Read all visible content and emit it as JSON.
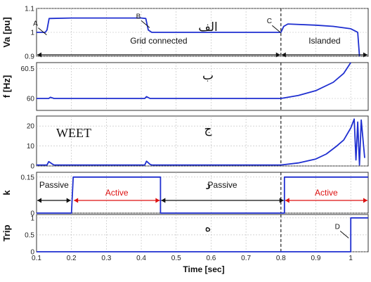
{
  "chart_data": {
    "type": "line",
    "xlabel": "Time [sec]",
    "xlim": [
      0.1,
      1.05
    ],
    "x_ticks": [
      "0.1",
      "0.2",
      "0.3",
      "0.4",
      "0.5",
      "0.6",
      "0.7",
      "0.8",
      "0.9",
      "1"
    ],
    "event_marker_x": 0.8,
    "line_color": "#1f2fd0",
    "panels": [
      {
        "id": "va",
        "ylabel": "Va [pu]",
        "ylim": [
          0.9,
          1.1
        ],
        "y_ticks": [
          "0.9",
          "1",
          "1.1"
        ],
        "panel_label": "الف",
        "points": [
          [
            0.1,
            1.0
          ],
          [
            0.125,
            1.0
          ],
          [
            0.13,
            1.01
          ],
          [
            0.136,
            1.058
          ],
          [
            0.2,
            1.06
          ],
          [
            0.3,
            1.06
          ],
          [
            0.4,
            1.06
          ],
          [
            0.413,
            1.058
          ],
          [
            0.42,
            1.01
          ],
          [
            0.43,
            1.0
          ],
          [
            0.8,
            1.0
          ],
          [
            0.808,
            1.025
          ],
          [
            0.82,
            1.035
          ],
          [
            0.9,
            1.03
          ],
          [
            0.95,
            1.025
          ],
          [
            1.0,
            1.015
          ],
          [
            1.02,
            1.0
          ],
          [
            1.025,
            0.9
          ]
        ],
        "labels": [
          {
            "id": "a",
            "text": "A",
            "x": 0.125,
            "y": 1.01
          },
          {
            "id": "b",
            "text": "B",
            "x": 0.42,
            "y": 1.04
          },
          {
            "id": "c",
            "text": "C",
            "x": 0.795,
            "y": 1.02
          }
        ],
        "spans": [
          {
            "id": "grid",
            "text": "Grid connected",
            "x0": 0.1,
            "x1": 0.8,
            "color": "#111"
          },
          {
            "id": "islanded",
            "text": "Islanded",
            "x0": 0.8,
            "x1": 1.05,
            "color": "#111"
          }
        ]
      },
      {
        "id": "freq",
        "ylabel": "f [Hz]",
        "ylim": [
          59.8,
          60.6
        ],
        "y_ticks": [
          "60",
          "60.5"
        ],
        "panel_label": "ب",
        "points": [
          [
            0.1,
            60.0
          ],
          [
            0.135,
            60.0
          ],
          [
            0.14,
            60.02
          ],
          [
            0.15,
            60.0
          ],
          [
            0.41,
            60.0
          ],
          [
            0.415,
            60.03
          ],
          [
            0.425,
            60.0
          ],
          [
            0.8,
            60.0
          ],
          [
            0.85,
            60.05
          ],
          [
            0.9,
            60.13
          ],
          [
            0.95,
            60.27
          ],
          [
            0.98,
            60.42
          ],
          [
            1.0,
            60.6
          ]
        ]
      },
      {
        "id": "osc",
        "ylabel": "",
        "ylim": [
          0,
          25
        ],
        "y_ticks": [
          "0",
          "10",
          "20"
        ],
        "panel_label": "ج",
        "watermark": "WEET",
        "points": [
          [
            0.1,
            0.5
          ],
          [
            0.13,
            0.5
          ],
          [
            0.135,
            2.2
          ],
          [
            0.145,
            1.0
          ],
          [
            0.15,
            0.5
          ],
          [
            0.41,
            0.5
          ],
          [
            0.415,
            2.4
          ],
          [
            0.425,
            0.8
          ],
          [
            0.43,
            0.5
          ],
          [
            0.8,
            0.5
          ],
          [
            0.85,
            1.5
          ],
          [
            0.9,
            3.5
          ],
          [
            0.93,
            6.0
          ],
          [
            0.96,
            10.0
          ],
          [
            0.98,
            13.0
          ],
          [
            1.0,
            19.0
          ],
          [
            1.01,
            23.5
          ],
          [
            1.015,
            3.0
          ],
          [
            1.02,
            22.0
          ],
          [
            1.025,
            0.5
          ],
          [
            1.03,
            23.0
          ],
          [
            1.04,
            4.0
          ]
        ]
      },
      {
        "id": "k",
        "ylabel": "k",
        "ylim": [
          0,
          0.17
        ],
        "y_ticks": [
          "0",
          "0.15"
        ],
        "panel_label": "د",
        "points": [
          [
            0.1,
            0.0
          ],
          [
            0.2,
            0.0
          ],
          [
            0.205,
            0.15
          ],
          [
            0.455,
            0.15
          ],
          [
            0.455,
            0.0
          ],
          [
            0.81,
            0.0
          ],
          [
            0.81,
            0.15
          ],
          [
            1.05,
            0.15
          ]
        ],
        "spans": [
          {
            "id": "p1",
            "text": "Passive",
            "x0": 0.1,
            "x1": 0.2,
            "color": "#111"
          },
          {
            "id": "a1",
            "text": "Active",
            "x0": 0.205,
            "x1": 0.455,
            "color": "#d11"
          },
          {
            "id": "p2",
            "text": "Passive",
            "x0": 0.455,
            "x1": 0.81,
            "color": "#111"
          },
          {
            "id": "a2",
            "text": "Active",
            "x0": 0.81,
            "x1": 1.05,
            "color": "#d11"
          }
        ]
      },
      {
        "id": "trip",
        "ylabel": "Trip",
        "ylim": [
          0,
          1.1
        ],
        "y_ticks": [
          "0",
          "0.5",
          "1"
        ],
        "panel_label": "ه",
        "points": [
          [
            0.1,
            0.0
          ],
          [
            1.0,
            0.0
          ],
          [
            1.0,
            1.0
          ],
          [
            1.05,
            1.0
          ]
        ],
        "labels": [
          {
            "id": "d",
            "text": "D",
            "x": 0.99,
            "y": 0.55
          }
        ]
      }
    ]
  }
}
